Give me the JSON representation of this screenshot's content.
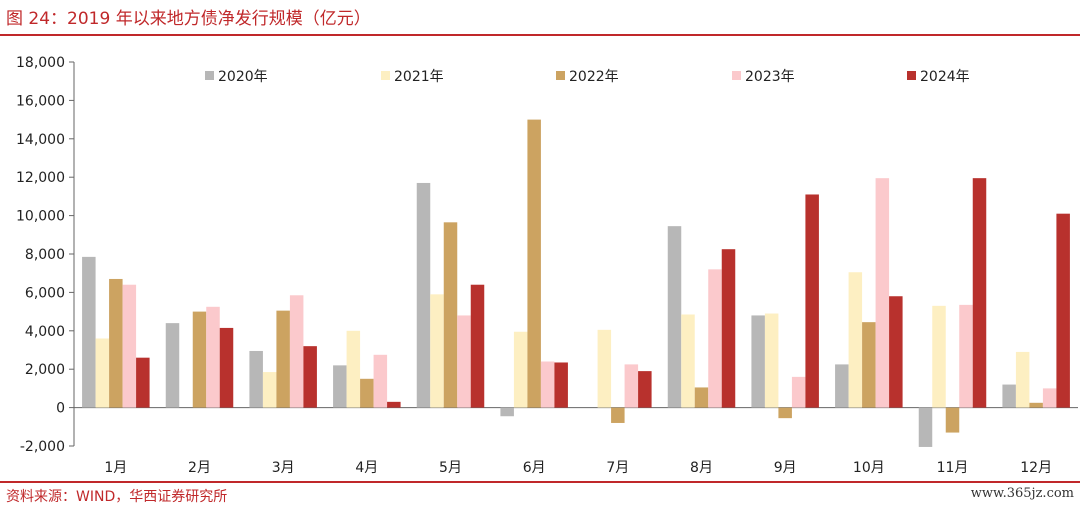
{
  "header": {
    "title": "图 24：2019 年以来地方债净发行规模（亿元）"
  },
  "footer": {
    "source": "资料来源：WIND，华西证券研究所",
    "watermark": "www.365jz.com"
  },
  "colors": {
    "2020年": "#b7b7b7",
    "2021年": "#fdefc2",
    "2022年": "#cca361",
    "2023年": "#fbc9cc",
    "2024年": "#b8312d"
  },
  "chart_data": {
    "type": "bar",
    "title": "图 24：2019 年以来地方债净发行规模（亿元）",
    "xlabel": "",
    "ylabel": "",
    "ylim": [
      -2000,
      18000
    ],
    "yticks": [
      -2000,
      0,
      2000,
      4000,
      6000,
      8000,
      10000,
      12000,
      14000,
      16000,
      18000
    ],
    "ytick_labels": [
      "-2,000",
      "0",
      "2,000",
      "4,000",
      "6,000",
      "8,000",
      "10,000",
      "12,000",
      "14,000",
      "16,000",
      "18,000"
    ],
    "grid": false,
    "legend_position": "top",
    "categories": [
      "1月",
      "2月",
      "3月",
      "4月",
      "5月",
      "6月",
      "7月",
      "8月",
      "9月",
      "10月",
      "11月",
      "12月"
    ],
    "series": [
      {
        "name": "2020年",
        "values": [
          7850,
          4400,
          2950,
          2200,
          11700,
          -450,
          0,
          9450,
          4800,
          2250,
          -2050,
          1200
        ]
      },
      {
        "name": "2021年",
        "values": [
          3600,
          0,
          1850,
          4000,
          5900,
          3950,
          4050,
          4850,
          4900,
          7050,
          5300,
          2900
        ]
      },
      {
        "name": "2022年",
        "values": [
          6700,
          5000,
          5050,
          1500,
          9650,
          15000,
          -800,
          1050,
          -550,
          4450,
          -1300,
          250
        ]
      },
      {
        "name": "2023年",
        "values": [
          6400,
          5250,
          5850,
          2750,
          4800,
          2400,
          2250,
          7200,
          1600,
          11950,
          5350,
          1000
        ]
      },
      {
        "name": "2024年",
        "values": [
          2600,
          4150,
          3200,
          300,
          6400,
          2350,
          1900,
          8250,
          11100,
          5800,
          11950,
          10100
        ]
      }
    ]
  }
}
